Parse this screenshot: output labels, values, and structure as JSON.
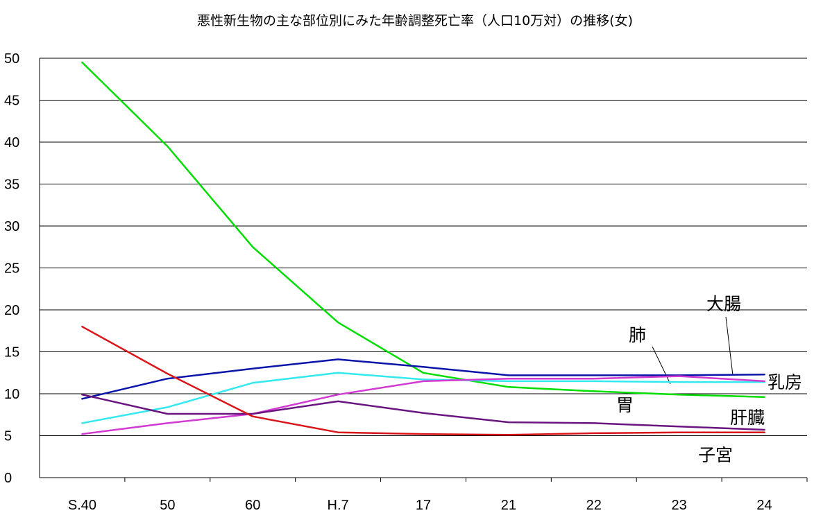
{
  "chart_data": {
    "type": "line",
    "title": "悪性新生物の主な部位別にみた年齢調整死亡率（人口10万対）の推移(女)",
    "xlabel": "",
    "ylabel": "",
    "categories": [
      "S.40",
      "50",
      "60",
      "H.7",
      "17",
      "21",
      "22",
      "23",
      "24"
    ],
    "ylim": [
      0,
      50
    ],
    "yticks": [
      0,
      5,
      10,
      15,
      20,
      25,
      30,
      35,
      40,
      45,
      50
    ],
    "grid": true,
    "series": [
      {
        "name": "胃",
        "color": "#00dd00",
        "values": [
          49.5,
          39.5,
          27.5,
          18.5,
          12.5,
          10.8,
          10.3,
          9.9,
          9.6
        ]
      },
      {
        "name": "大腸",
        "color": "#0a14a8",
        "values": [
          9.4,
          11.8,
          13.0,
          14.1,
          13.2,
          12.2,
          12.2,
          12.2,
          12.3
        ]
      },
      {
        "name": "肺",
        "color": "#33e8ef",
        "values": [
          6.5,
          8.4,
          11.3,
          12.5,
          11.7,
          11.5,
          11.5,
          11.4,
          11.4
        ]
      },
      {
        "name": "乳房",
        "color": "#d23ad2",
        "values": [
          5.2,
          6.5,
          7.6,
          9.9,
          11.5,
          11.8,
          11.8,
          12.1,
          11.5
        ]
      },
      {
        "name": "肝臓",
        "color": "#6a1480",
        "values": [
          9.9,
          7.6,
          7.6,
          9.1,
          7.7,
          6.6,
          6.5,
          6.1,
          5.7
        ]
      },
      {
        "name": "子宮",
        "color": "#d8161a",
        "values": [
          18.0,
          12.4,
          7.3,
          5.4,
          5.2,
          5.1,
          5.3,
          5.4,
          5.4
        ]
      }
    ]
  }
}
